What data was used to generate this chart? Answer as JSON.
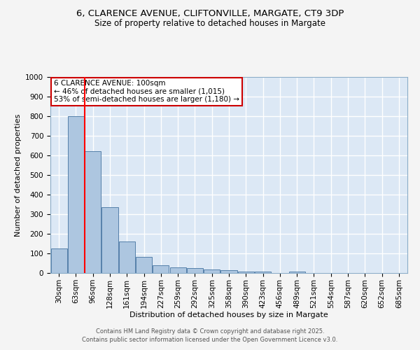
{
  "title_line1": "6, CLARENCE AVENUE, CLIFTONVILLE, MARGATE, CT9 3DP",
  "title_line2": "Size of property relative to detached houses in Margate",
  "xlabel": "Distribution of detached houses by size in Margate",
  "ylabel": "Number of detached properties",
  "bar_labels": [
    "30sqm",
    "63sqm",
    "96sqm",
    "128sqm",
    "161sqm",
    "194sqm",
    "227sqm",
    "259sqm",
    "292sqm",
    "325sqm",
    "358sqm",
    "390sqm",
    "423sqm",
    "456sqm",
    "489sqm",
    "521sqm",
    "554sqm",
    "587sqm",
    "620sqm",
    "652sqm",
    "685sqm"
  ],
  "bar_values": [
    125,
    800,
    620,
    335,
    160,
    82,
    38,
    27,
    26,
    18,
    14,
    8,
    7,
    0,
    6,
    0,
    0,
    0,
    0,
    0,
    0
  ],
  "bar_color": "#adc6e0",
  "bar_edge_color": "#5580aa",
  "red_line_index": 2,
  "annotation_title": "6 CLARENCE AVENUE: 100sqm",
  "annotation_line2": "← 46% of detached houses are smaller (1,015)",
  "annotation_line3": "53% of semi-detached houses are larger (1,180) →",
  "annotation_box_color": "#ffffff",
  "annotation_box_edge": "#cc0000",
  "ylim": [
    0,
    1000
  ],
  "yticks": [
    0,
    100,
    200,
    300,
    400,
    500,
    600,
    700,
    800,
    900,
    1000
  ],
  "background_color": "#dce8f5",
  "grid_color": "#ffffff",
  "fig_background": "#f4f4f4",
  "footnote1": "Contains HM Land Registry data © Crown copyright and database right 2025.",
  "footnote2": "Contains public sector information licensed under the Open Government Licence v3.0."
}
